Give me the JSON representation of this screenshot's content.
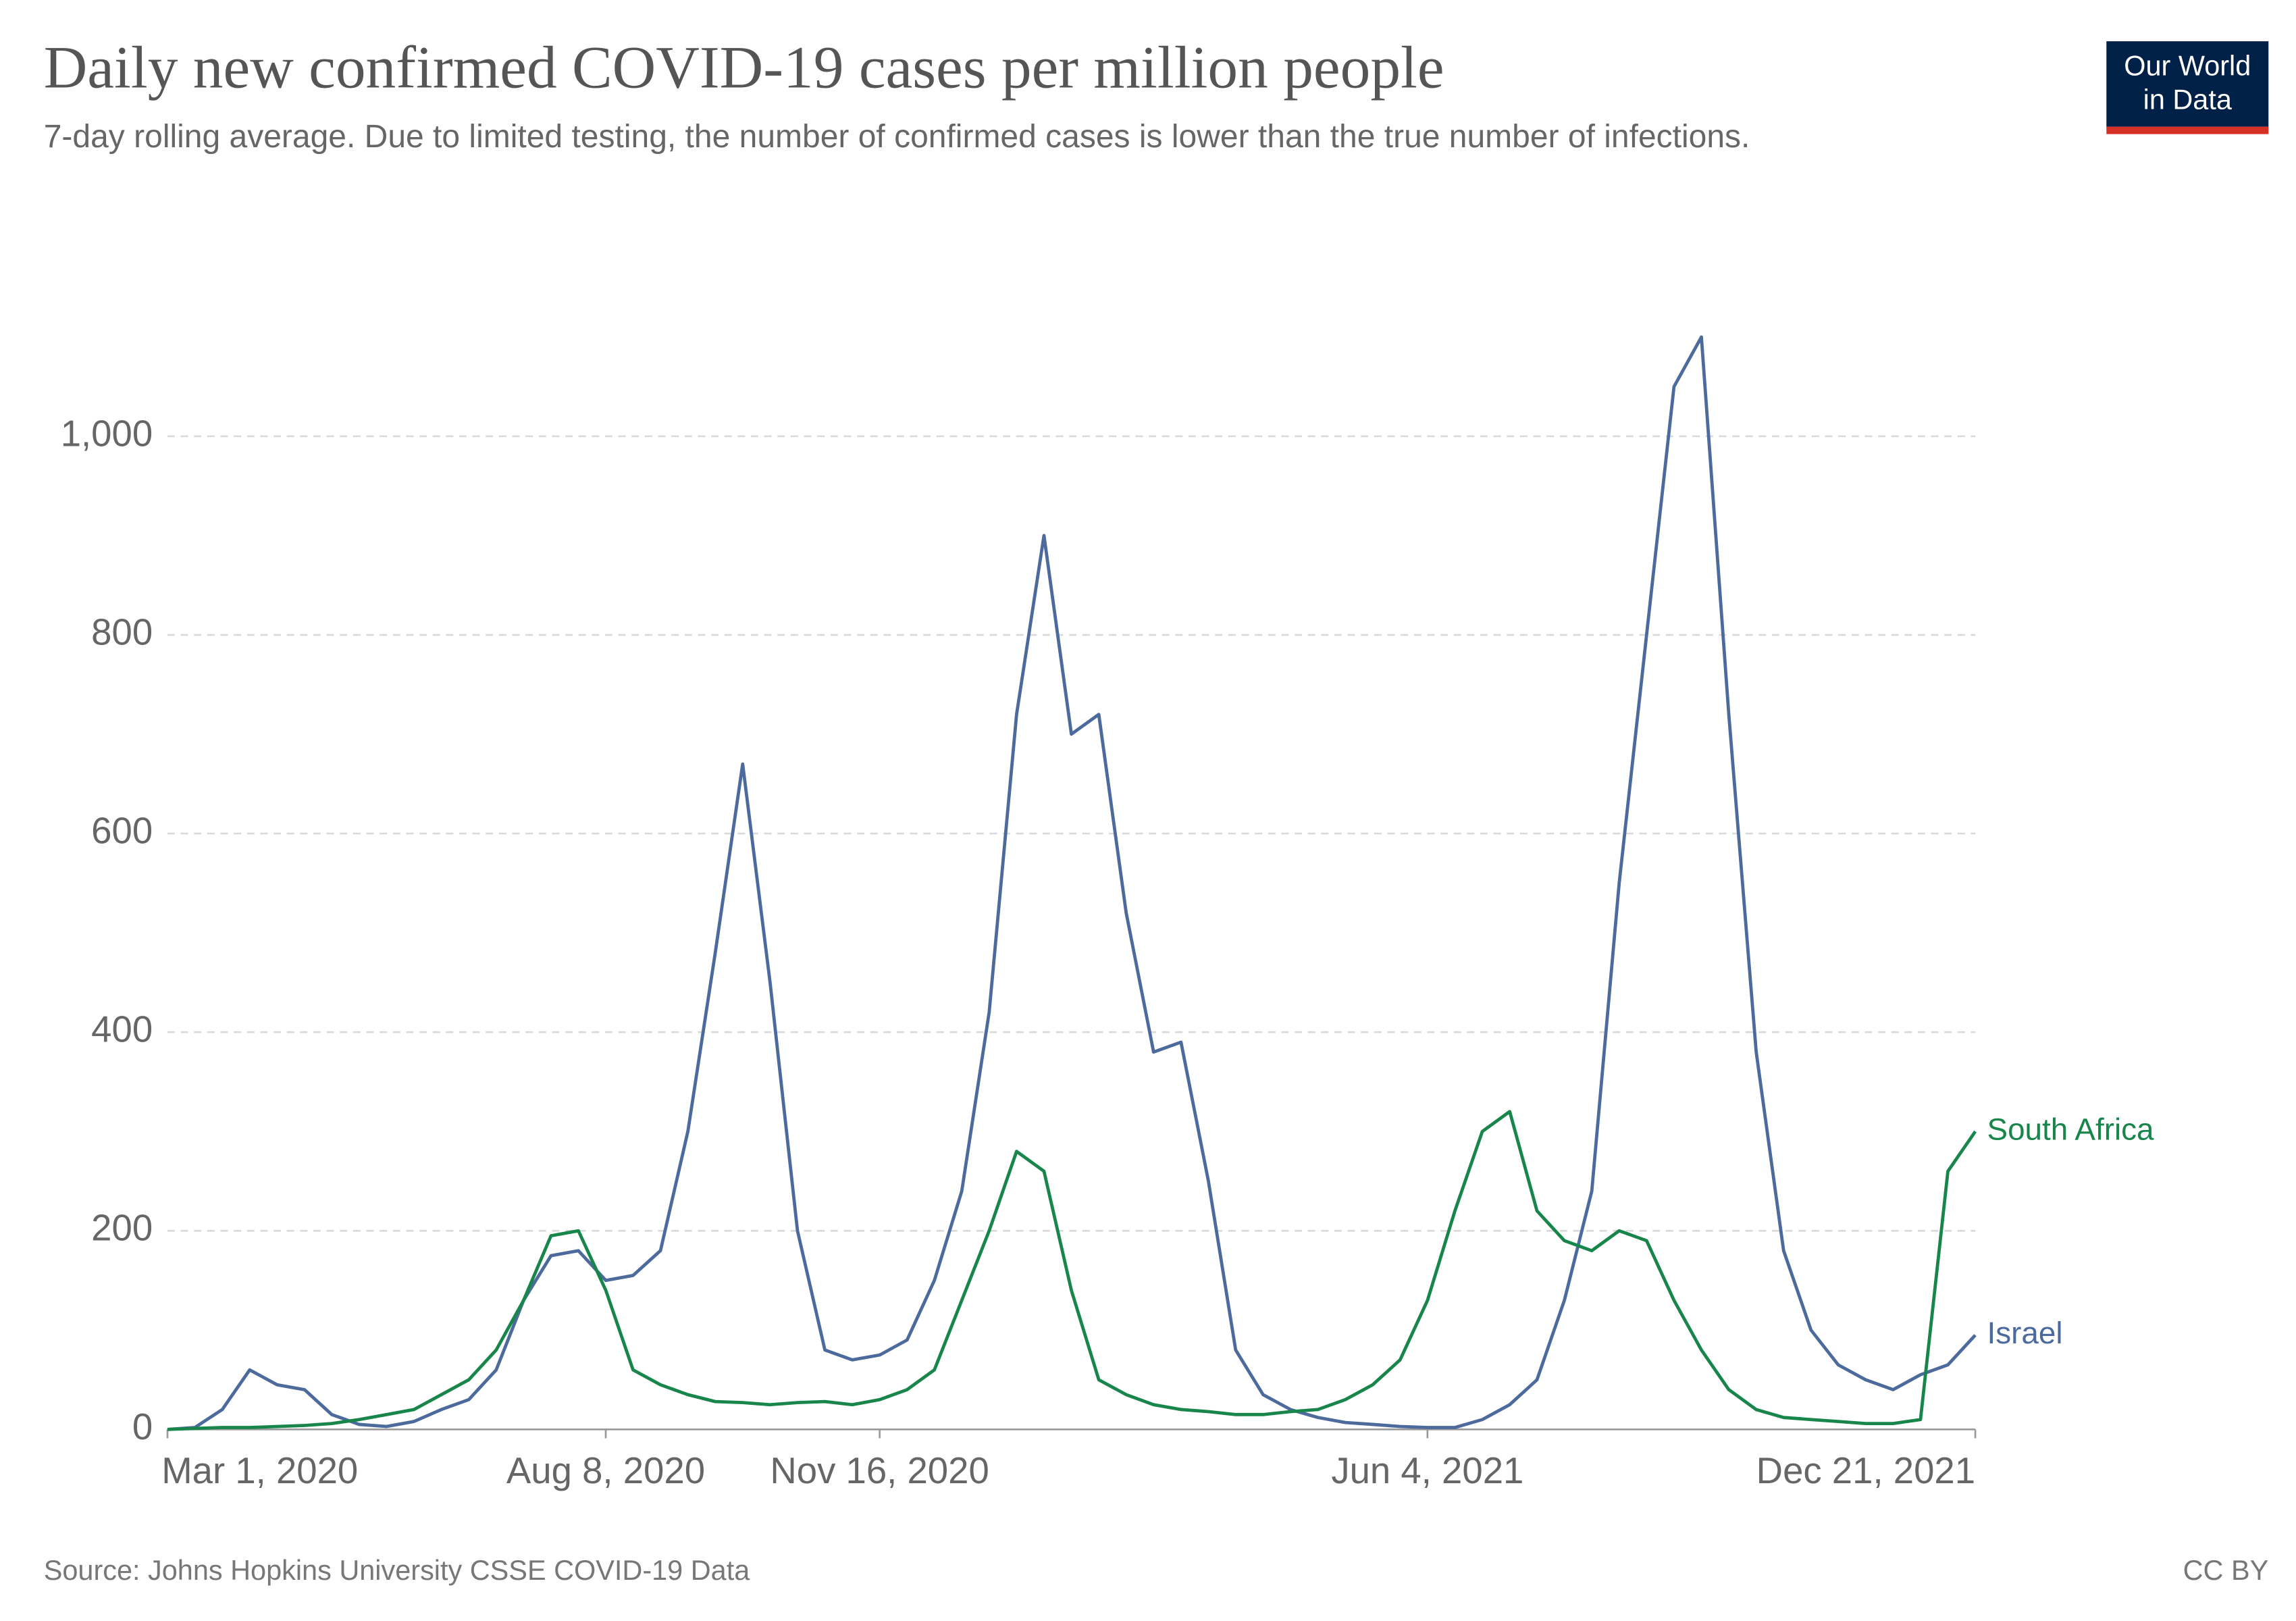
{
  "chart_data": {
    "type": "line",
    "title": "Daily new confirmed COVID-19 cases per million people",
    "subtitle": "7-day rolling average. Due to limited testing, the number of confirmed cases is lower than the true number of infections.",
    "source": "Source: Johns Hopkins University CSSE COVID-19 Data",
    "license": "CC BY",
    "logo": [
      "Our World",
      "in Data"
    ],
    "x": [
      "2020-03-01",
      "2020-03-11",
      "2020-03-21",
      "2020-03-31",
      "2020-04-10",
      "2020-04-20",
      "2020-04-30",
      "2020-05-10",
      "2020-05-20",
      "2020-05-30",
      "2020-06-09",
      "2020-06-19",
      "2020-06-29",
      "2020-07-09",
      "2020-07-19",
      "2020-07-29",
      "2020-08-08",
      "2020-08-18",
      "2020-08-28",
      "2020-09-07",
      "2020-09-17",
      "2020-09-27",
      "2020-10-07",
      "2020-10-17",
      "2020-10-27",
      "2020-11-06",
      "2020-11-16",
      "2020-11-26",
      "2020-12-06",
      "2020-12-16",
      "2020-12-26",
      "2021-01-05",
      "2021-01-15",
      "2021-01-25",
      "2021-02-04",
      "2021-02-14",
      "2021-02-24",
      "2021-03-06",
      "2021-03-16",
      "2021-03-26",
      "2021-04-05",
      "2021-04-15",
      "2021-04-25",
      "2021-05-05",
      "2021-05-15",
      "2021-05-25",
      "2021-06-04",
      "2021-06-14",
      "2021-06-24",
      "2021-07-04",
      "2021-07-14",
      "2021-07-24",
      "2021-08-03",
      "2021-08-13",
      "2021-08-23",
      "2021-09-02",
      "2021-09-12",
      "2021-09-22",
      "2021-10-02",
      "2021-10-12",
      "2021-10-22",
      "2021-11-01",
      "2021-11-11",
      "2021-11-21",
      "2021-12-01",
      "2021-12-11",
      "2021-12-21"
    ],
    "series": [
      {
        "name": "Israel",
        "color": "#4c6a9c",
        "values": [
          0,
          2,
          20,
          60,
          45,
          40,
          15,
          5,
          3,
          8,
          20,
          30,
          60,
          130,
          175,
          180,
          150,
          155,
          180,
          300,
          480,
          670,
          450,
          200,
          80,
          70,
          75,
          90,
          150,
          240,
          420,
          720,
          900,
          700,
          720,
          520,
          380,
          390,
          250,
          80,
          35,
          20,
          12,
          7,
          5,
          3,
          2,
          2,
          10,
          25,
          50,
          130,
          240,
          550,
          800,
          1050,
          1100,
          720,
          380,
          180,
          100,
          65,
          50,
          40,
          55,
          65,
          95
        ]
      },
      {
        "name": "South Africa",
        "color": "#18864b",
        "values": [
          0,
          1,
          2,
          2,
          3,
          4,
          6,
          10,
          15,
          20,
          35,
          50,
          80,
          130,
          195,
          200,
          140,
          60,
          45,
          35,
          28,
          27,
          25,
          27,
          28,
          25,
          30,
          40,
          60,
          130,
          200,
          280,
          260,
          140,
          50,
          35,
          25,
          20,
          18,
          15,
          15,
          18,
          20,
          30,
          45,
          70,
          130,
          220,
          300,
          320,
          220,
          190,
          180,
          200,
          190,
          130,
          80,
          40,
          20,
          12,
          10,
          8,
          6,
          6,
          10,
          260,
          300
        ]
      }
    ],
    "xlim": [
      "2020-03-01",
      "2021-12-21"
    ],
    "xticks": [
      {
        "value": "2020-03-01",
        "label": "Mar 1, 2020"
      },
      {
        "value": "2020-08-08",
        "label": "Aug 8, 2020"
      },
      {
        "value": "2020-11-16",
        "label": "Nov 16, 2020"
      },
      {
        "value": "2021-06-04",
        "label": "Jun 4, 2021"
      },
      {
        "value": "2021-12-21",
        "label": "Dec 21, 2021"
      }
    ],
    "ylim": [
      0,
      1190
    ],
    "yticks": [
      0,
      200,
      400,
      600,
      800,
      {
        "value": 1000,
        "label": "1,000"
      }
    ],
    "grid": true
  }
}
